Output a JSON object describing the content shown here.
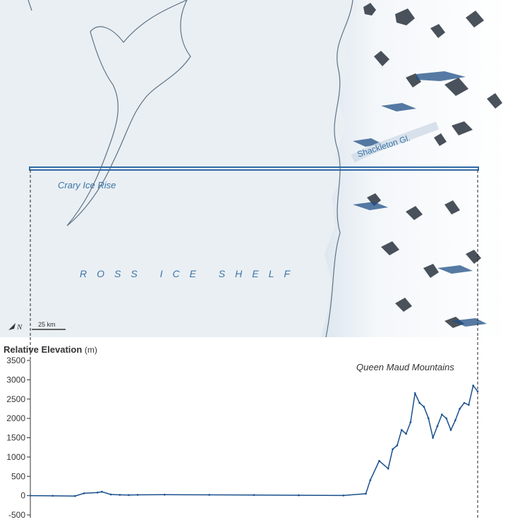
{
  "map": {
    "labels": {
      "crary": "Crary Ice Rise",
      "shelf": "ROSS ICE SHELF",
      "glacier": "Shackleton Gl."
    },
    "north_label": "N",
    "scale_bar": "25 km",
    "colors": {
      "ice_shelf": "#eaeff3",
      "snow": "#f7f9fb",
      "rock": "#2b3540",
      "blue_ice": "#1f4f86",
      "outline": "#5d7385",
      "profile_line": "#2f6aa6"
    }
  },
  "chart_data": {
    "type": "scatter",
    "title": "Relative Elevation",
    "title_unit": "(m)",
    "annotation": "Queen Maud Mountains",
    "ylim": [
      -500,
      3500
    ],
    "yticks": [
      -500,
      0,
      500,
      1000,
      1500,
      2000,
      2500,
      3000,
      3500
    ],
    "ytick_labels": [
      "-500",
      "0",
      "500",
      "1000",
      "1500",
      "2000",
      "2500",
      "3000",
      "3500"
    ],
    "xlim": [
      0,
      100
    ],
    "x": [
      0,
      5,
      10,
      12,
      15,
      16,
      18,
      20,
      22,
      24,
      30,
      40,
      50,
      60,
      70,
      75,
      76,
      78,
      80,
      81,
      82,
      83,
      84,
      85,
      86,
      87,
      88,
      89,
      90,
      91,
      92,
      93,
      94,
      95,
      96,
      97,
      98,
      99,
      100
    ],
    "y": [
      0,
      -5,
      -10,
      60,
      80,
      100,
      30,
      20,
      15,
      20,
      25,
      20,
      15,
      10,
      5,
      50,
      400,
      900,
      700,
      1200,
      1300,
      1700,
      1600,
      1900,
      2650,
      2400,
      2300,
      2000,
      1500,
      1800,
      2100,
      2000,
      1700,
      1950,
      2250,
      2400,
      2350,
      2850,
      2700
    ],
    "colors": {
      "points": "#2e6db0",
      "line": "#1b4f8c",
      "axis": "#333333"
    }
  }
}
